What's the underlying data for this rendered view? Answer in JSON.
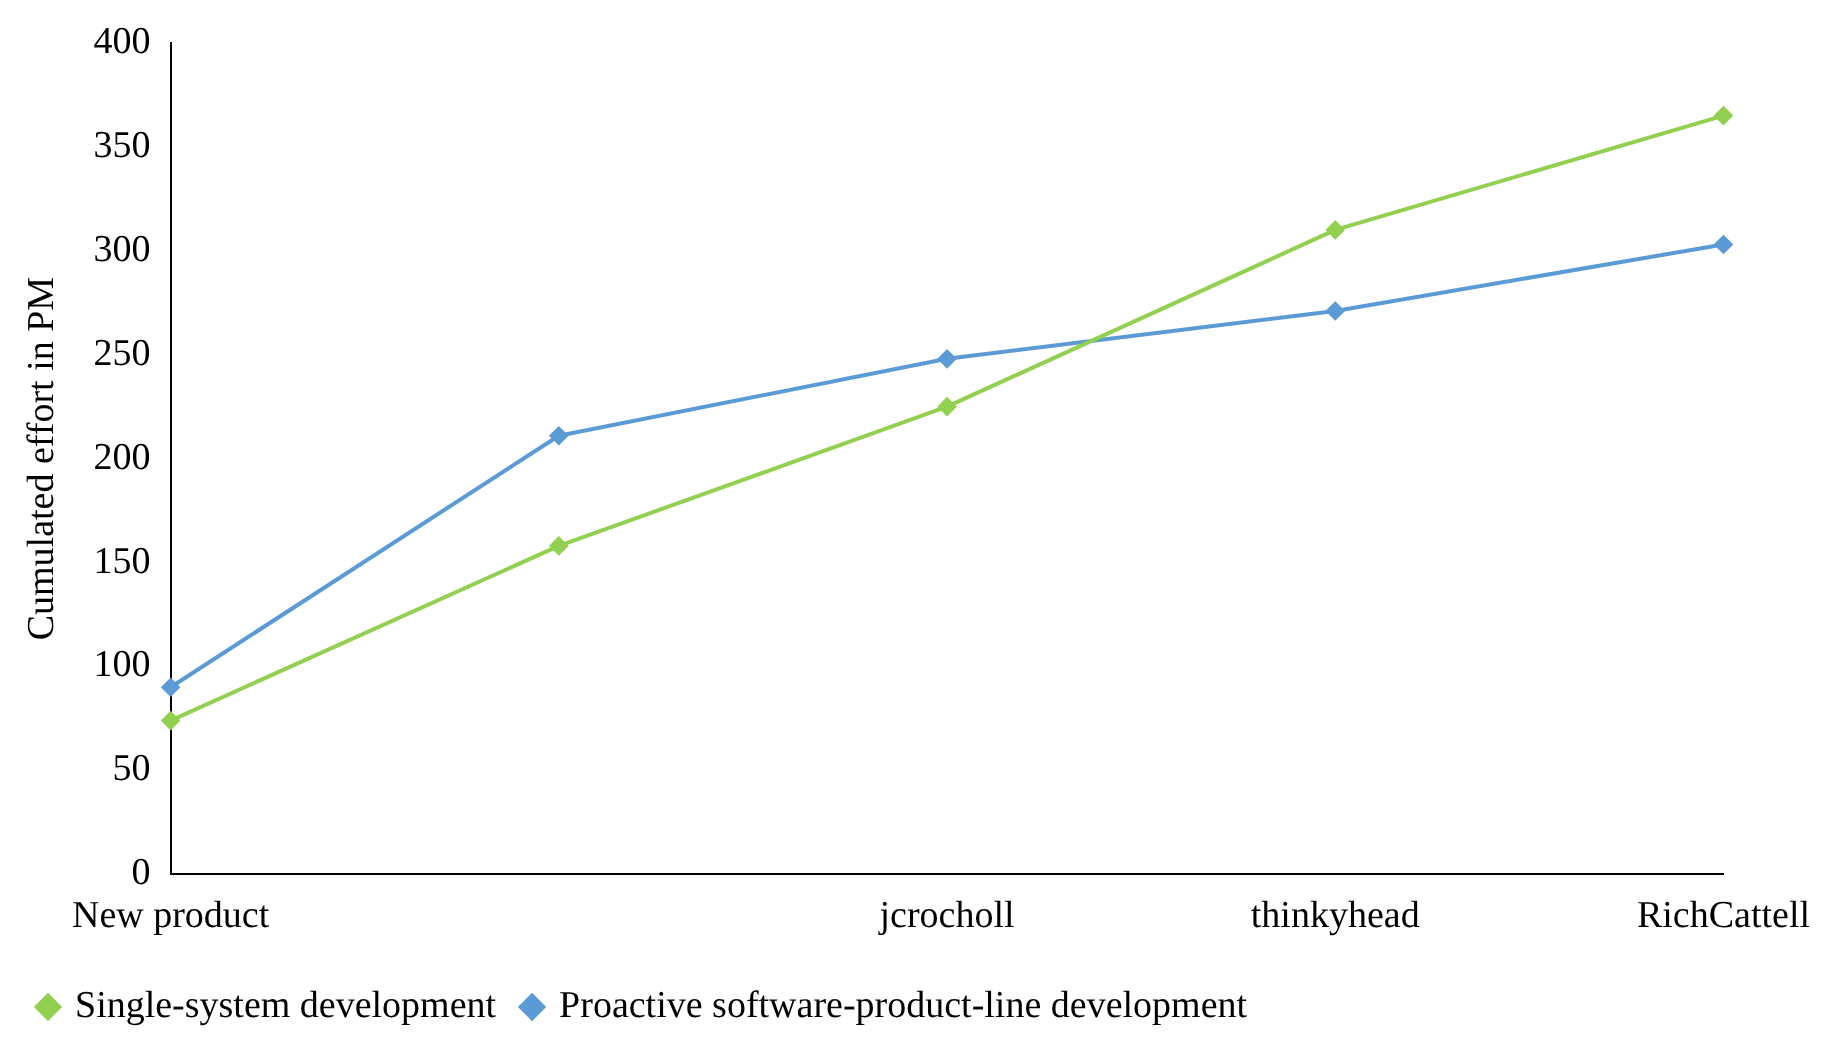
{
  "chart_data": {
    "type": "line",
    "ylabel": "Cumulated effort in PM",
    "categories": [
      "New product",
      null,
      "jcrocholl",
      "thinkyhead",
      "RichCattell"
    ],
    "series": [
      {
        "name": "Single-system development",
        "color": "#92d050",
        "values": [
          74,
          158,
          225,
          310,
          365
        ]
      },
      {
        "name": "Proactive software-product-line development",
        "color": "#5b9bd5",
        "values": [
          90,
          211,
          248,
          271,
          303
        ]
      }
    ],
    "ylim": [
      0,
      400
    ],
    "yticks": [
      0,
      50,
      100,
      150,
      200,
      250,
      300,
      350,
      400
    ],
    "grid": false,
    "legend": "bottom left",
    "marker": "diamond",
    "line_style": "solid"
  }
}
